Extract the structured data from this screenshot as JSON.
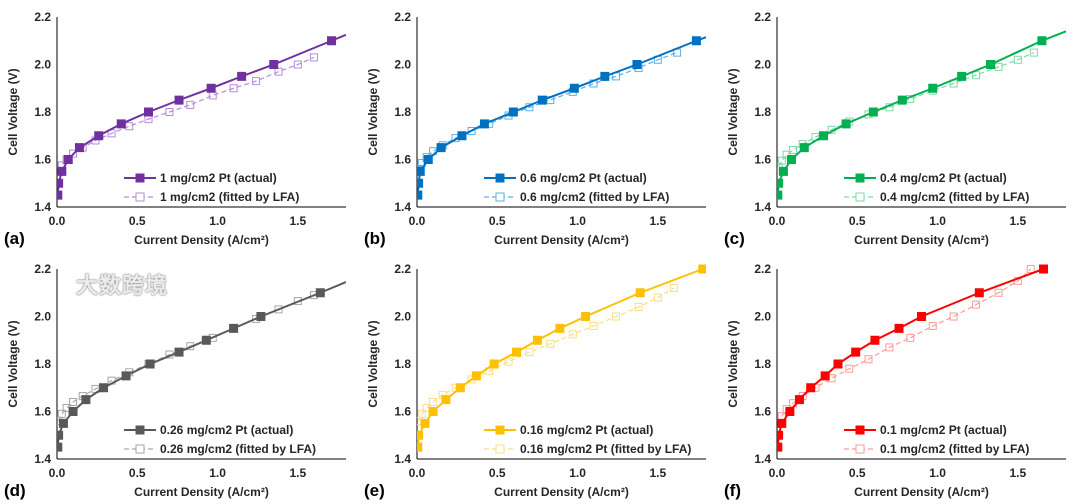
{
  "chart_data": [
    {
      "type": "line",
      "panel_label": "(a)",
      "xlabel": "Current Density (A/cm²)",
      "ylabel": "Cell Voltage (V)",
      "xlim": [
        0,
        1.8
      ],
      "ylim": [
        1.4,
        2.2
      ],
      "xticks": [
        "0.0",
        "0.5",
        "1.0",
        "1.5"
      ],
      "yticks": [
        "1.4",
        "1.6",
        "1.8",
        "2.0",
        "2.2"
      ],
      "legend_position": "bottom-right",
      "series": [
        {
          "name": "1 mg/cm2 Pt (actual)",
          "color": "#7030A0",
          "marker": "filled-square",
          "line": "solid",
          "x": [
            0.005,
            0.01,
            0.03,
            0.07,
            0.14,
            0.26,
            0.4,
            0.57,
            0.76,
            0.96,
            1.15,
            1.35,
            1.71,
            1.8
          ],
          "y": [
            1.45,
            1.5,
            1.55,
            1.6,
            1.65,
            1.7,
            1.75,
            1.8,
            1.85,
            1.9,
            1.95,
            2.0,
            2.1,
            2.125
          ]
        },
        {
          "name": "1 mg/cm2 (fitted by LFA)",
          "color": "#B48CDA",
          "marker": "open-square",
          "line": "dashed",
          "x": [
            0.01,
            0.03,
            0.06,
            0.1,
            0.16,
            0.24,
            0.34,
            0.45,
            0.57,
            0.7,
            0.83,
            0.97,
            1.1,
            1.24,
            1.38,
            1.5,
            1.6
          ],
          "y": [
            1.55,
            1.575,
            1.6,
            1.625,
            1.65,
            1.68,
            1.71,
            1.74,
            1.77,
            1.8,
            1.83,
            1.87,
            1.9,
            1.93,
            1.97,
            2.0,
            2.03
          ]
        }
      ]
    },
    {
      "type": "line",
      "panel_label": "(b)",
      "xlabel": "Current Density (A/cm²)",
      "ylabel": "Cell Voltage (V)",
      "xlim": [
        0,
        1.8
      ],
      "ylim": [
        1.4,
        2.2
      ],
      "xticks": [
        "0.0",
        "0.5",
        "1.0",
        "1.5"
      ],
      "yticks": [
        "1.4",
        "1.6",
        "1.8",
        "2.0",
        "2.2"
      ],
      "legend_position": "bottom-right",
      "series": [
        {
          "name": "0.6 mg/cm2 Pt (actual)",
          "color": "#0070C0",
          "marker": "filled-square",
          "line": "solid",
          "x": [
            0.005,
            0.01,
            0.02,
            0.07,
            0.15,
            0.28,
            0.42,
            0.6,
            0.78,
            0.98,
            1.17,
            1.37,
            1.74,
            1.8
          ],
          "y": [
            1.45,
            1.5,
            1.55,
            1.6,
            1.65,
            1.7,
            1.75,
            1.8,
            1.85,
            1.9,
            1.95,
            2.0,
            2.1,
            2.115
          ]
        },
        {
          "name": "0.6 mg/cm2 (fitted by LFA)",
          "color": "#5AB0EA",
          "marker": "open-square",
          "line": "dashed",
          "x": [
            0.01,
            0.03,
            0.06,
            0.1,
            0.16,
            0.24,
            0.34,
            0.45,
            0.57,
            0.7,
            0.83,
            0.97,
            1.1,
            1.24,
            1.38,
            1.5,
            1.62
          ],
          "y": [
            1.56,
            1.585,
            1.61,
            1.635,
            1.66,
            1.69,
            1.72,
            1.75,
            1.785,
            1.82,
            1.85,
            1.885,
            1.92,
            1.95,
            1.985,
            2.02,
            2.05
          ]
        }
      ]
    },
    {
      "type": "line",
      "panel_label": "(c)",
      "xlabel": "Current Density (A/cm²)",
      "ylabel": "Cell Voltage (V)",
      "xlim": [
        0,
        1.8
      ],
      "ylim": [
        1.4,
        2.2
      ],
      "xticks": [
        "0.0",
        "0.5",
        "1.0",
        "1.5"
      ],
      "yticks": [
        "1.4",
        "1.6",
        "1.8",
        "2.0",
        "2.2"
      ],
      "legend_position": "bottom-right",
      "series": [
        {
          "name": "0.4 mg/cm2 Pt (actual)",
          "color": "#00B050",
          "marker": "filled-square",
          "line": "solid",
          "x": [
            0.005,
            0.01,
            0.04,
            0.09,
            0.17,
            0.29,
            0.43,
            0.6,
            0.78,
            0.97,
            1.15,
            1.33,
            1.65,
            1.8
          ],
          "y": [
            1.45,
            1.5,
            1.55,
            1.6,
            1.65,
            1.7,
            1.75,
            1.8,
            1.85,
            1.9,
            1.95,
            2.0,
            2.1,
            2.14
          ]
        },
        {
          "name": "0.4 mg/cm2 (fitted by LFA)",
          "color": "#7FD9A4",
          "marker": "open-square",
          "line": "dashed",
          "x": [
            0.01,
            0.03,
            0.06,
            0.1,
            0.16,
            0.24,
            0.34,
            0.45,
            0.57,
            0.7,
            0.83,
            0.97,
            1.1,
            1.24,
            1.38,
            1.5,
            1.6
          ],
          "y": [
            1.57,
            1.595,
            1.62,
            1.64,
            1.665,
            1.695,
            1.725,
            1.76,
            1.79,
            1.82,
            1.855,
            1.89,
            1.92,
            1.955,
            1.99,
            2.02,
            2.05
          ]
        }
      ]
    },
    {
      "type": "line",
      "panel_label": "(d)",
      "xlabel": "Current Density (A/cm²)",
      "ylabel": "Cell Voltage (V)",
      "xlim": [
        0,
        1.8
      ],
      "ylim": [
        1.4,
        2.2
      ],
      "xticks": [
        "0.0",
        "0.5",
        "1.0",
        "1.5"
      ],
      "yticks": [
        "1.4",
        "1.6",
        "1.8",
        "2.0",
        "2.2"
      ],
      "legend_position": "bottom-right",
      "series": [
        {
          "name": "0.26 mg/cm2 Pt (actual)",
          "color": "#595959",
          "marker": "filled-square",
          "line": "solid",
          "x": [
            0.005,
            0.01,
            0.04,
            0.1,
            0.18,
            0.29,
            0.43,
            0.58,
            0.76,
            0.93,
            1.1,
            1.27,
            1.64,
            1.8
          ],
          "y": [
            1.45,
            1.5,
            1.55,
            1.6,
            1.65,
            1.7,
            1.75,
            1.8,
            1.85,
            1.9,
            1.95,
            2.0,
            2.1,
            2.145
          ]
        },
        {
          "name": "0.26 mg/cm2 (fitted by LFA)",
          "color": "#A6A6A6",
          "marker": "open-square",
          "line": "dashed",
          "x": [
            0.01,
            0.03,
            0.06,
            0.1,
            0.16,
            0.24,
            0.34,
            0.45,
            0.57,
            0.7,
            0.83,
            0.97,
            1.1,
            1.24,
            1.38,
            1.5,
            1.6
          ],
          "y": [
            1.56,
            1.59,
            1.615,
            1.64,
            1.665,
            1.695,
            1.73,
            1.765,
            1.8,
            1.84,
            1.875,
            1.91,
            1.95,
            1.99,
            2.03,
            2.065,
            2.09
          ]
        }
      ]
    },
    {
      "type": "line",
      "panel_label": "(e)",
      "xlabel": "Current Density (A/cm²)",
      "ylabel": "Cell Voltage (V)",
      "xlim": [
        0,
        1.8
      ],
      "ylim": [
        1.4,
        2.2
      ],
      "xticks": [
        "0.0",
        "0.5",
        "1.0",
        "1.5"
      ],
      "yticks": [
        "1.4",
        "1.6",
        "1.8",
        "2.0",
        "2.2"
      ],
      "legend_position": "bottom-right",
      "series": [
        {
          "name": "0.16 mg/cm2 Pt (actual)",
          "color": "#FFC000",
          "marker": "filled-square",
          "line": "solid",
          "x": [
            0.005,
            0.01,
            0.05,
            0.1,
            0.18,
            0.27,
            0.37,
            0.48,
            0.62,
            0.75,
            0.89,
            1.05,
            1.39,
            1.78
          ],
          "y": [
            1.45,
            1.5,
            1.55,
            1.6,
            1.65,
            1.7,
            1.75,
            1.8,
            1.85,
            1.9,
            1.95,
            2.0,
            2.1,
            2.2
          ]
        },
        {
          "name": "0.16 mg/cm2 Pt (fitted by LFA)",
          "color": "#FFDD85",
          "marker": "open-square",
          "line": "dashed",
          "x": [
            0.01,
            0.03,
            0.06,
            0.1,
            0.16,
            0.24,
            0.34,
            0.45,
            0.57,
            0.7,
            0.83,
            0.97,
            1.1,
            1.24,
            1.38,
            1.5,
            1.6
          ],
          "y": [
            1.56,
            1.59,
            1.615,
            1.64,
            1.67,
            1.7,
            1.735,
            1.77,
            1.81,
            1.85,
            1.885,
            1.925,
            1.96,
            2.0,
            2.04,
            2.08,
            2.12
          ]
        }
      ]
    },
    {
      "type": "line",
      "panel_label": "(f)",
      "xlabel": "Current Density (A/cm²)",
      "ylabel": "Cell Voltage (V)",
      "xlim": [
        0,
        1.8
      ],
      "ylim": [
        1.4,
        2.2
      ],
      "xticks": [
        "0.0",
        "0.5",
        "1.0",
        "1.5"
      ],
      "yticks": [
        "1.4",
        "1.6",
        "1.8",
        "2.0",
        "2.2"
      ],
      "legend_position": "bottom-right",
      "series": [
        {
          "name": "0.1 mg/cm2 Pt (actual)",
          "color": "#FF0000",
          "marker": "filled-square",
          "line": "solid",
          "x": [
            0.005,
            0.01,
            0.03,
            0.08,
            0.14,
            0.21,
            0.3,
            0.38,
            0.49,
            0.61,
            0.76,
            0.9,
            1.26,
            1.66
          ],
          "y": [
            1.45,
            1.5,
            1.55,
            1.6,
            1.65,
            1.7,
            1.75,
            1.8,
            1.85,
            1.9,
            1.95,
            2.0,
            2.1,
            2.2
          ]
        },
        {
          "name": "0.1 mg/cm2 (fitted by LFA)",
          "color": "#FF9A9A",
          "marker": "open-square",
          "line": "dashed",
          "x": [
            0.01,
            0.03,
            0.06,
            0.1,
            0.16,
            0.24,
            0.34,
            0.45,
            0.57,
            0.7,
            0.83,
            0.97,
            1.1,
            1.24,
            1.38,
            1.5,
            1.58
          ],
          "y": [
            1.55,
            1.58,
            1.61,
            1.635,
            1.665,
            1.7,
            1.74,
            1.78,
            1.82,
            1.87,
            1.91,
            1.96,
            2.0,
            2.05,
            2.1,
            2.15,
            2.2
          ]
        }
      ]
    }
  ],
  "watermark": "大数跨境"
}
